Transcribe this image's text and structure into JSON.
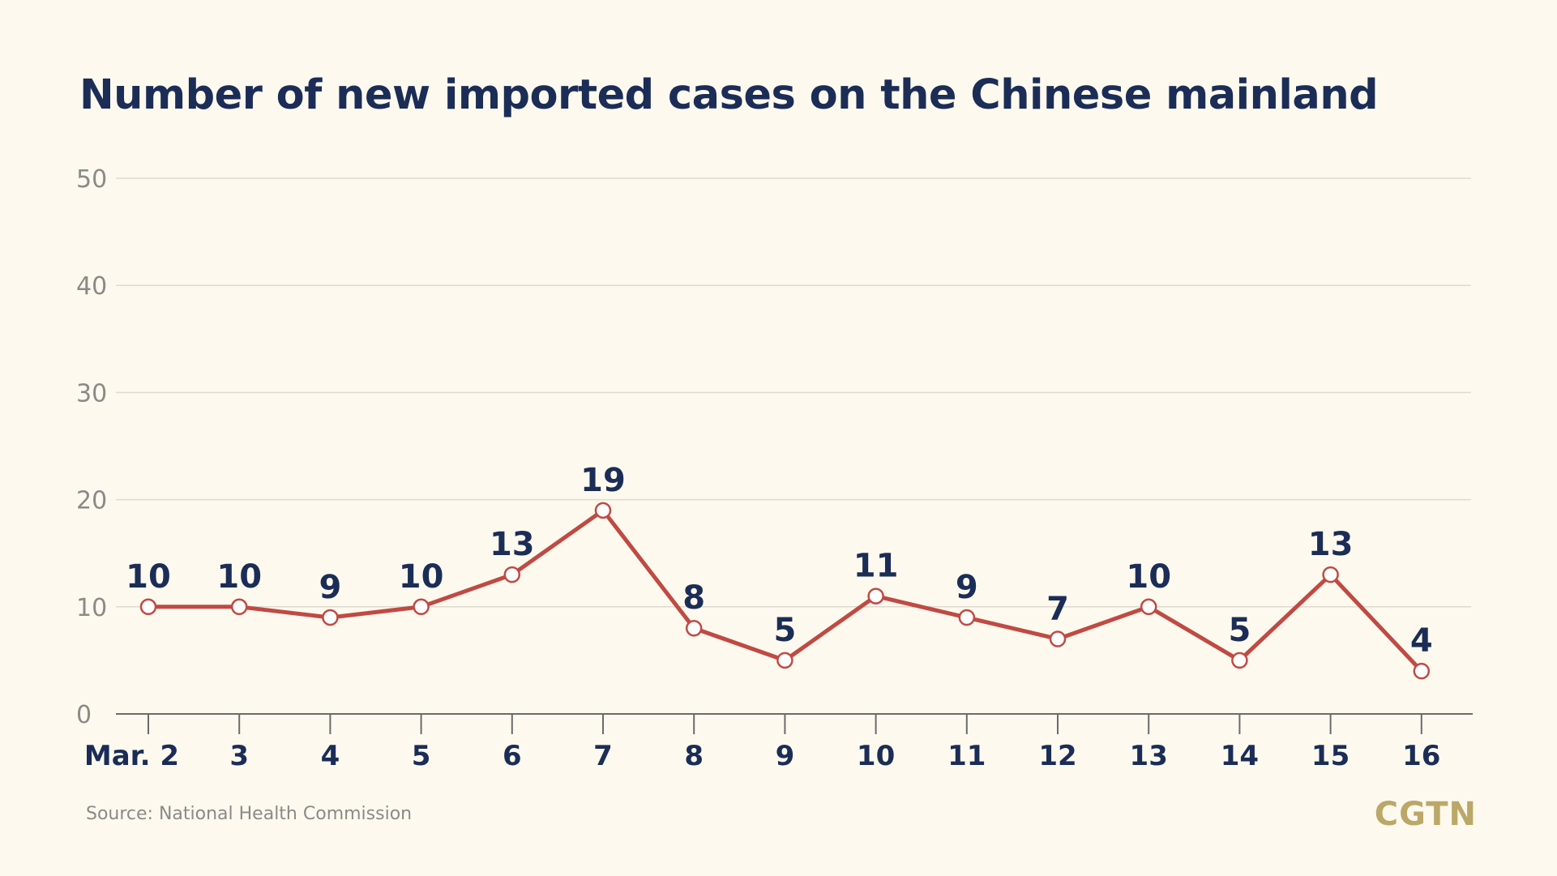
{
  "title": "Number of new imported cases on the Chinese mainland",
  "source": "Source: National Health Commission",
  "brand": "CGTN",
  "colors": {
    "background": "#fdf9ee",
    "title": "#1b2d57",
    "line": "#c04a43",
    "grid": "#dedbd1",
    "axis": "#6b6b6b",
    "tick_text": "#8a8a87",
    "brand": "#bba768"
  },
  "chart_data": {
    "type": "line",
    "title": "Number of new imported cases on the Chinese mainland",
    "xlabel": "",
    "ylabel": "",
    "categories": [
      "Mar. 2",
      "3",
      "4",
      "5",
      "6",
      "7",
      "8",
      "9",
      "10",
      "11",
      "12",
      "13",
      "14",
      "15",
      "16"
    ],
    "series": [
      {
        "values": [
          10,
          10,
          9,
          10,
          13,
          19,
          8,
          5,
          11,
          9,
          7,
          10,
          5,
          13,
          4
        ]
      }
    ],
    "data_labels": [
      "10",
      "10",
      "9",
      "10",
      "13",
      "19",
      "8",
      "5",
      "11",
      "9",
      "7",
      "10",
      "5",
      "13",
      "4"
    ],
    "ylim": [
      0,
      50
    ],
    "yticks": [
      0,
      10,
      20,
      30,
      40,
      50
    ],
    "grid": true,
    "legend": "none"
  }
}
